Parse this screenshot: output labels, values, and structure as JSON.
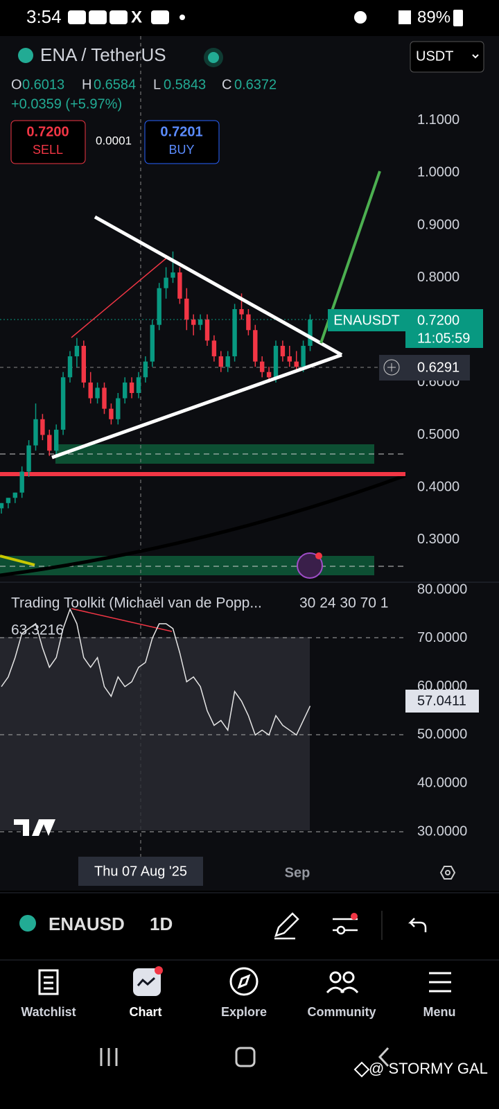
{
  "status_bar": {
    "time": "3:54",
    "battery": "89%"
  },
  "header": {
    "symbol": "ENA / TetherUS",
    "currency": "USDT"
  },
  "ohlc": {
    "open_label": "O",
    "open": "0.6013",
    "high_label": "H",
    "high": "0.6584",
    "low_label": "L",
    "low": "0.5843",
    "close_label": "C",
    "close": "0.6372",
    "change": "+0.0359 (+5.97%)"
  },
  "trade": {
    "sell_price": "0.7200",
    "sell": "SELL",
    "spread": "0.0001",
    "buy_price": "0.7201",
    "buy": "BUY"
  },
  "chart": {
    "type": "candlestick",
    "up_color": "#089981",
    "down_color": "#f23645",
    "open": [
      0.36,
      0.37,
      0.38,
      0.39,
      0.43,
      0.48,
      0.53,
      0.5,
      0.47,
      0.51,
      0.61,
      0.65,
      0.67,
      0.6,
      0.57,
      0.59,
      0.55,
      0.53,
      0.57,
      0.6,
      0.58,
      0.61,
      0.64,
      0.71,
      0.78,
      0.8,
      0.81,
      0.76,
      0.72,
      0.71,
      0.72,
      0.68,
      0.65,
      0.63,
      0.65,
      0.74,
      0.73,
      0.7,
      0.64,
      0.62,
      0.61,
      0.67,
      0.65,
      0.64,
      0.63,
      0.67
    ],
    "high": [
      0.37,
      0.38,
      0.39,
      0.44,
      0.49,
      0.56,
      0.54,
      0.51,
      0.52,
      0.62,
      0.66,
      0.685,
      0.68,
      0.62,
      0.6,
      0.6,
      0.56,
      0.58,
      0.61,
      0.61,
      0.62,
      0.65,
      0.72,
      0.79,
      0.82,
      0.85,
      0.82,
      0.78,
      0.73,
      0.73,
      0.73,
      0.69,
      0.66,
      0.66,
      0.75,
      0.77,
      0.74,
      0.71,
      0.65,
      0.63,
      0.68,
      0.68,
      0.67,
      0.66,
      0.68,
      0.73
    ],
    "low": [
      0.35,
      0.36,
      0.37,
      0.38,
      0.42,
      0.47,
      0.49,
      0.46,
      0.46,
      0.5,
      0.6,
      0.63,
      0.59,
      0.56,
      0.56,
      0.54,
      0.52,
      0.52,
      0.56,
      0.57,
      0.57,
      0.6,
      0.63,
      0.7,
      0.76,
      0.79,
      0.75,
      0.7,
      0.69,
      0.7,
      0.67,
      0.64,
      0.62,
      0.62,
      0.64,
      0.72,
      0.69,
      0.63,
      0.61,
      0.6,
      0.6,
      0.64,
      0.63,
      0.62,
      0.62,
      0.66
    ],
    "close": [
      0.37,
      0.38,
      0.39,
      0.43,
      0.48,
      0.53,
      0.5,
      0.47,
      0.51,
      0.61,
      0.65,
      0.67,
      0.6,
      0.57,
      0.59,
      0.55,
      0.53,
      0.57,
      0.6,
      0.58,
      0.61,
      0.64,
      0.71,
      0.78,
      0.8,
      0.81,
      0.76,
      0.72,
      0.71,
      0.72,
      0.68,
      0.65,
      0.63,
      0.65,
      0.74,
      0.73,
      0.7,
      0.64,
      0.62,
      0.61,
      0.67,
      0.65,
      0.64,
      0.63,
      0.67,
      0.72
    ],
    "ylim": [
      0.219,
      1.261
    ],
    "yticks": [
      {
        "value": 1.1,
        "label": "1.1000"
      },
      {
        "value": 1.0,
        "label": "1.0000"
      },
      {
        "value": 0.9,
        "label": "0.9000"
      },
      {
        "value": 0.8,
        "label": "0.8000"
      },
      {
        "value": 0.7,
        "label": "0.7000"
      },
      {
        "value": 0.6,
        "label": "0.6000"
      },
      {
        "value": 0.5,
        "label": "0.5000"
      },
      {
        "value": 0.4,
        "label": "0.4000"
      },
      {
        "value": 0.3,
        "label": "0.3000"
      }
    ],
    "last_label": "ENAUSDT",
    "last_price": "0.7200",
    "countdown": "11:05:59",
    "crosshair_price": "0.6291",
    "x_labels": [
      "Thu 07 Aug '25",
      "Sep"
    ]
  },
  "indicator": {
    "type": "line",
    "name": "Trading Toolkit (Michaël van de Popp...",
    "params": "30 24 30 70 1",
    "value": "63.3216",
    "last": "57.0411",
    "color": "#e6e6e6",
    "values": [
      60,
      62,
      66,
      71,
      72,
      73,
      68,
      64,
      66,
      72,
      76,
      73,
      66,
      64,
      66,
      60,
      58,
      62,
      60,
      61,
      64,
      65,
      70,
      73,
      73,
      72,
      67,
      61,
      62,
      60,
      55,
      52,
      53,
      51,
      59,
      57,
      54,
      50,
      51,
      50,
      54,
      52,
      51,
      50,
      53,
      56
    ],
    "ylim": [
      26.42,
      81.58
    ],
    "yticks": [
      {
        "value": 80,
        "label": "80.0000"
      },
      {
        "value": 70,
        "label": "70.0000"
      },
      {
        "value": 60,
        "label": "60.0000"
      },
      {
        "value": 50,
        "label": "50.0000"
      },
      {
        "value": 40,
        "label": "40.0000"
      },
      {
        "value": 30,
        "label": "30.0000"
      }
    ]
  },
  "toolbar": {
    "symbol": "ENAUSD",
    "interval": "1D"
  },
  "nav": {
    "items": [
      "Watchlist",
      "Chart",
      "Explore",
      "Community",
      "Menu"
    ]
  },
  "watermark": "@ STORMY GAL"
}
